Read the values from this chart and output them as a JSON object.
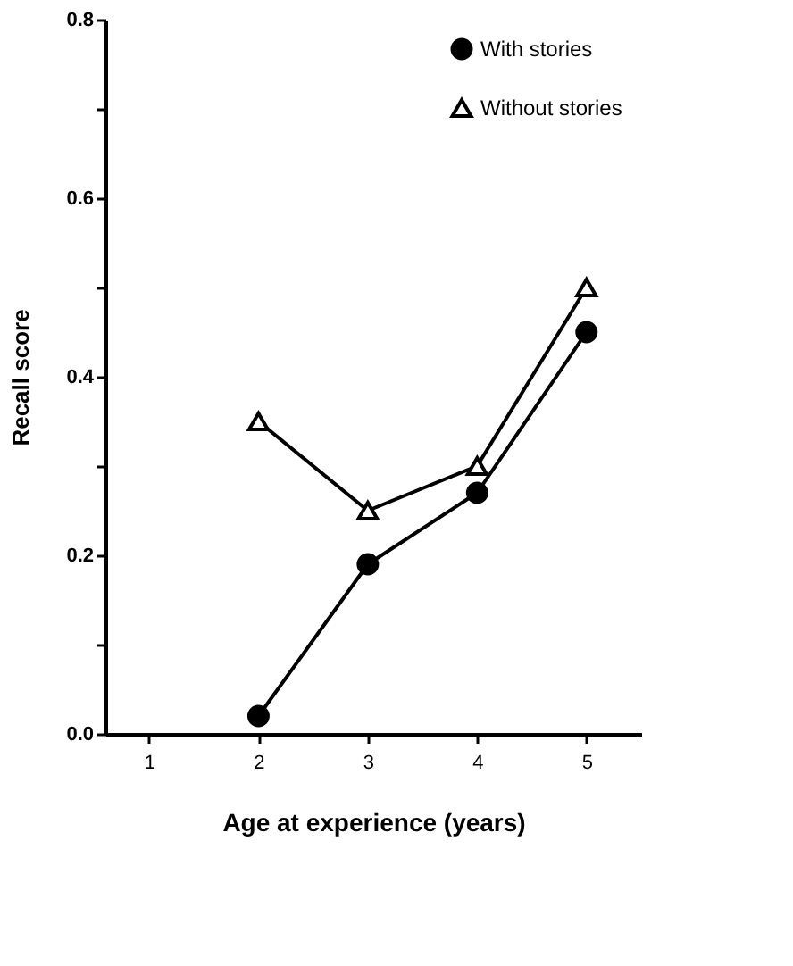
{
  "chart_data": {
    "type": "line",
    "xlabel": "Age at experience (years)",
    "ylabel": "Recall score",
    "x": [
      2,
      3,
      4,
      5
    ],
    "series": [
      {
        "name": "With stories",
        "color": "#000000",
        "marker": "circle",
        "values": [
          0.02,
          0.19,
          0.27,
          0.45
        ]
      },
      {
        "name": "Without stories",
        "color": "#000000",
        "marker": "triangle",
        "values": [
          0.35,
          0.25,
          0.3,
          0.5
        ]
      }
    ],
    "xlim": [
      0.6,
      5.5
    ],
    "xticks": [
      1,
      2,
      3,
      4,
      5
    ],
    "ylim": [
      0,
      0.8
    ],
    "yticks": [
      {
        "value": 0,
        "label": "0.0"
      },
      {
        "value": 0.1,
        "label": null
      },
      {
        "value": 0.2,
        "label": "0.2"
      },
      {
        "value": 0.3,
        "label": null
      },
      {
        "value": 0.4,
        "label": "0.4"
      },
      {
        "value": 0.5,
        "label": null
      },
      {
        "value": 0.6,
        "label": "0.6"
      },
      {
        "value": 0.7,
        "label": null
      },
      {
        "value": 0.8,
        "label": "0.8"
      }
    ],
    "grid": false,
    "legend": "top right",
    "line_style": "solid"
  }
}
